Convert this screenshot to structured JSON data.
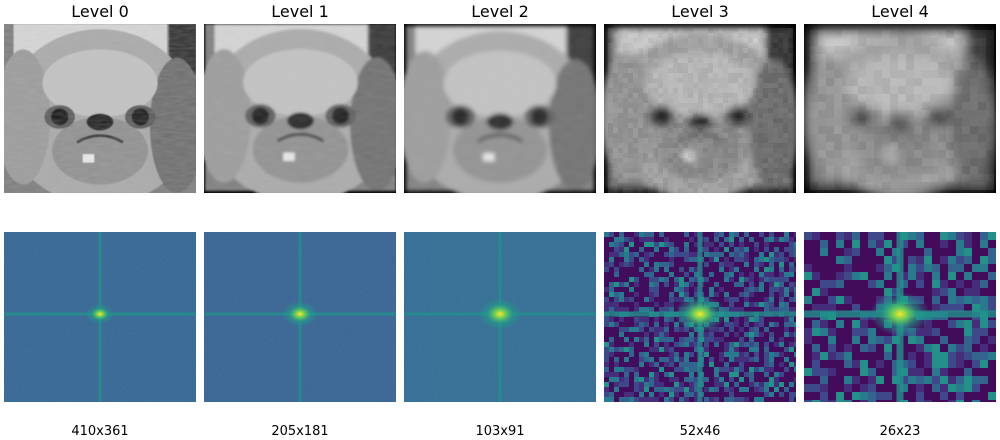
{
  "panels": [
    {
      "title": "Level 0",
      "size": "410x361"
    },
    {
      "title": "Level 1",
      "size": "205x181"
    },
    {
      "title": "Level 2",
      "size": "103x91"
    },
    {
      "title": "Level 3",
      "size": "52x46"
    },
    {
      "title": "Level 4",
      "size": "26x23"
    }
  ]
}
